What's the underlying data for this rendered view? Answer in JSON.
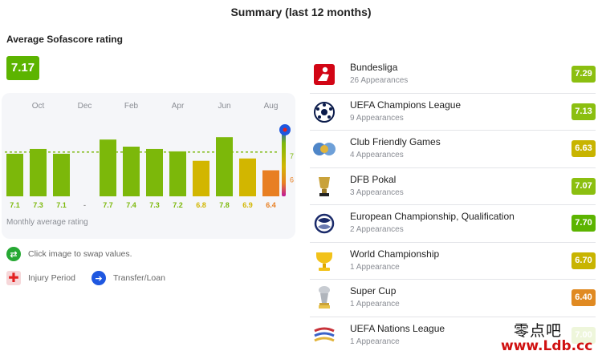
{
  "header": {
    "title": "Summary (last 12 months)"
  },
  "left": {
    "section_title": "Average Sofascore rating",
    "average_rating": "7.17",
    "chart_caption": "Monthly average rating",
    "hints": {
      "swap": "Click image to swap values.",
      "injury": "Injury Period",
      "transfer": "Transfer/Loan"
    }
  },
  "chart_data": {
    "type": "bar",
    "categories": [
      "",
      "Oct",
      "",
      "Dec",
      "",
      "Feb",
      "",
      "Apr",
      "",
      "Jun",
      "",
      "Aug"
    ],
    "month_labels_shown": [
      "Oct",
      "Dec",
      "Feb",
      "Apr",
      "Jun",
      "Aug"
    ],
    "value_labels": [
      "7.1",
      "7.3",
      "7.1",
      "-",
      "7.7",
      "7.4",
      "7.3",
      "7.2",
      "6.8",
      "7.8",
      "6.9",
      "6.4"
    ],
    "values": [
      7.1,
      7.3,
      7.1,
      null,
      7.7,
      7.4,
      7.3,
      7.2,
      6.8,
      7.8,
      6.9,
      6.4
    ],
    "reference_line": 7.17,
    "scale_ticks": [
      "7",
      "6"
    ],
    "colors": {
      "high": "#7cb80a",
      "mid": "#d2b600",
      "low": "#e87f22",
      "ref": "#7cb80a"
    }
  },
  "competitions": [
    {
      "name": "Bundesliga",
      "appearances": "26 Appearances",
      "rating": "7.29",
      "color": "#8bbf10",
      "icon": "bundesliga-logo-icon"
    },
    {
      "name": "UEFA Champions League",
      "appearances": "9 Appearances",
      "rating": "7.13",
      "color": "#8bbf10",
      "icon": "champions-league-logo-icon"
    },
    {
      "name": "Club Friendly Games",
      "appearances": "4 Appearances",
      "rating": "6.63",
      "color": "#c8b400",
      "icon": "club-friendly-logo-icon"
    },
    {
      "name": "DFB Pokal",
      "appearances": "3 Appearances",
      "rating": "7.07",
      "color": "#8bbf10",
      "icon": "dfb-pokal-logo-icon"
    },
    {
      "name": "European Championship, Qualification",
      "appearances": "2 Appearances",
      "rating": "7.70",
      "color": "#5cb400",
      "icon": "euro-qualification-logo-icon"
    },
    {
      "name": "World Championship",
      "appearances": "1 Appearance",
      "rating": "6.70",
      "color": "#c8b400",
      "icon": "world-cup-logo-icon"
    },
    {
      "name": "Super Cup",
      "appearances": "1 Appearance",
      "rating": "6.40",
      "color": "#e08a22",
      "icon": "super-cup-logo-icon"
    },
    {
      "name": "UEFA Nations League",
      "appearances": "1 Appearance",
      "rating": "7.00",
      "color": "#8bbf10",
      "icon": "nations-league-logo-icon"
    }
  ],
  "watermark": {
    "chinese": "零点吧",
    "url": "www.Ldb.cc"
  }
}
